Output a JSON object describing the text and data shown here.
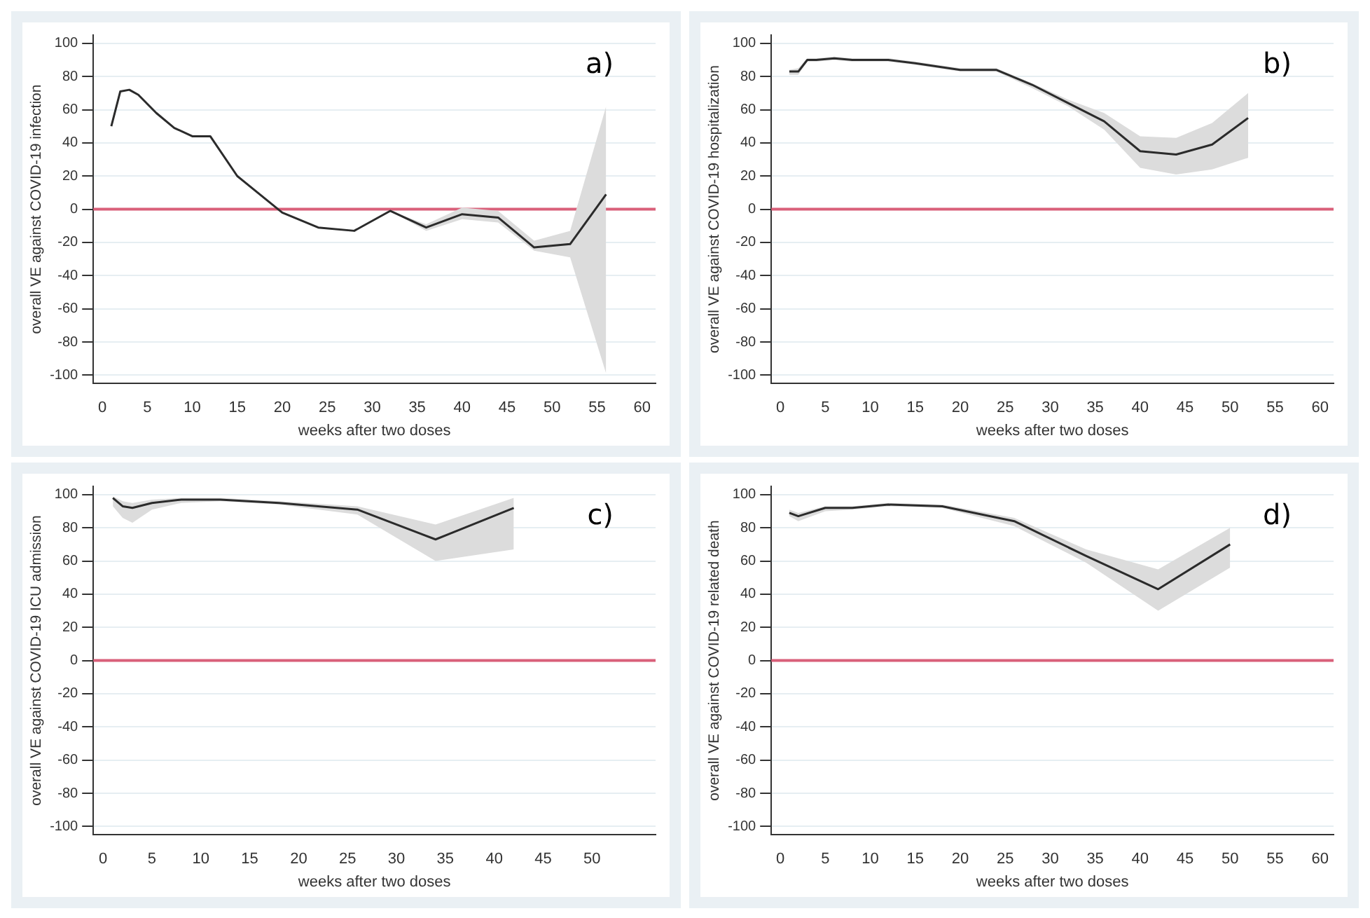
{
  "chart_data": [
    {
      "type": "line",
      "xlabel": "weeks after two doses",
      "ylabel": "overall VE against COVID-19 infection",
      "annotations": [
        "a)"
      ],
      "xlim": [
        -1,
        61.5
      ],
      "xticks": [
        0,
        5,
        10,
        15,
        20,
        25,
        30,
        35,
        40,
        45,
        50,
        55,
        60
      ],
      "ylim": [
        -105,
        105
      ],
      "yticks": [
        -100,
        -80,
        -60,
        -40,
        -20,
        0,
        20,
        40,
        60,
        80,
        100
      ],
      "grid": "y",
      "ref_lines": [
        {
          "axis": "y",
          "value": 0,
          "color": "#d9607a"
        }
      ],
      "series": [
        {
          "color": "#2b2b2b",
          "x": [
            1,
            2,
            3,
            4,
            6,
            8,
            10,
            12,
            15,
            20,
            24,
            28,
            32,
            36,
            40,
            44,
            48,
            52,
            56
          ],
          "values": [
            50,
            71,
            72,
            69,
            58,
            49,
            44,
            44,
            20,
            -2,
            -11,
            -13,
            -1,
            -11,
            -3,
            -5,
            -23,
            -21,
            9
          ],
          "lower": [
            50,
            71,
            72,
            69,
            58,
            49,
            44,
            44,
            20,
            -2,
            -11,
            -13,
            -1,
            -13,
            -6,
            -8,
            -25,
            -29,
            -99
          ],
          "upper": [
            50,
            71,
            72,
            69,
            58,
            49,
            44,
            44,
            20,
            -2,
            -11,
            -13,
            -1,
            -9,
            1,
            -1,
            -19,
            -13,
            62
          ]
        }
      ]
    },
    {
      "type": "line",
      "xlabel": "weeks after two doses",
      "ylabel": "overall VE against COVID-19 hospitalization",
      "annotations": [
        "b)"
      ],
      "xlim": [
        -1,
        61.5
      ],
      "xticks": [
        0,
        5,
        10,
        15,
        20,
        25,
        30,
        35,
        40,
        45,
        50,
        55,
        60
      ],
      "ylim": [
        -105,
        105
      ],
      "yticks": [
        -100,
        -80,
        -60,
        -40,
        -20,
        0,
        20,
        40,
        60,
        80,
        100
      ],
      "grid": "y",
      "ref_lines": [
        {
          "axis": "y",
          "value": 0,
          "color": "#d9607a"
        }
      ],
      "series": [
        {
          "color": "#2b2b2b",
          "x": [
            1,
            2,
            3,
            4,
            6,
            8,
            10,
            12,
            15,
            20,
            24,
            28,
            32,
            36,
            40,
            44,
            48,
            52
          ],
          "values": [
            83,
            83,
            90,
            90,
            91,
            90,
            90,
            90,
            88,
            84,
            84,
            75,
            64,
            53,
            35,
            33,
            39,
            55
          ],
          "lower": [
            81,
            81,
            89,
            89,
            90,
            89,
            89,
            89,
            87,
            83,
            83,
            73,
            62,
            48,
            25,
            21,
            24,
            31
          ],
          "upper": [
            84,
            85,
            91,
            91,
            92,
            91,
            91,
            91,
            89,
            85,
            85,
            76,
            66,
            58,
            44,
            43,
            52,
            70
          ]
        }
      ]
    },
    {
      "type": "line",
      "xlabel": "weeks after two doses",
      "ylabel": "overall VE against COVID-19 ICU admission",
      "annotations": [
        "c)"
      ],
      "xlim": [
        -1,
        56.5
      ],
      "xticks": [
        0,
        5,
        10,
        15,
        20,
        25,
        30,
        35,
        40,
        45,
        50
      ],
      "ylim": [
        -105,
        105
      ],
      "yticks": [
        -100,
        -80,
        -60,
        -40,
        -20,
        0,
        20,
        40,
        60,
        80,
        100
      ],
      "grid": "y",
      "ref_lines": [
        {
          "axis": "y",
          "value": 0,
          "color": "#d9607a"
        }
      ],
      "series": [
        {
          "color": "#2b2b2b",
          "x": [
            1,
            2,
            3,
            5,
            8,
            12,
            18,
            26,
            34,
            42
          ],
          "values": [
            98,
            93,
            92,
            95,
            97,
            97,
            95,
            91,
            73,
            92
          ],
          "lower": [
            93,
            86,
            83,
            91,
            95,
            96,
            94,
            88,
            60,
            67
          ],
          "upper": [
            99,
            96,
            95,
            97,
            98,
            98,
            96,
            93,
            82,
            98
          ]
        }
      ]
    },
    {
      "type": "line",
      "xlabel": "weeks after two doses",
      "ylabel": "overall VE against COVID-19 related death",
      "annotations": [
        "d)"
      ],
      "xlim": [
        -1,
        61.5
      ],
      "xticks": [
        0,
        5,
        10,
        15,
        20,
        25,
        30,
        35,
        40,
        45,
        50,
        55,
        60
      ],
      "ylim": [
        -105,
        105
      ],
      "yticks": [
        -100,
        -80,
        -60,
        -40,
        -20,
        0,
        20,
        40,
        60,
        80,
        100
      ],
      "grid": "y",
      "ref_lines": [
        {
          "axis": "y",
          "value": 0,
          "color": "#d9607a"
        }
      ],
      "series": [
        {
          "color": "#2b2b2b",
          "x": [
            1,
            2,
            5,
            8,
            12,
            18,
            26,
            34,
            42,
            50
          ],
          "values": [
            89,
            87,
            92,
            92,
            94,
            93,
            84,
            63,
            43,
            70
          ],
          "lower": [
            87,
            84,
            90,
            91,
            93,
            92,
            81,
            59,
            30,
            56
          ],
          "upper": [
            91,
            89,
            93,
            93,
            95,
            94,
            86,
            67,
            55,
            80
          ]
        }
      ]
    }
  ]
}
